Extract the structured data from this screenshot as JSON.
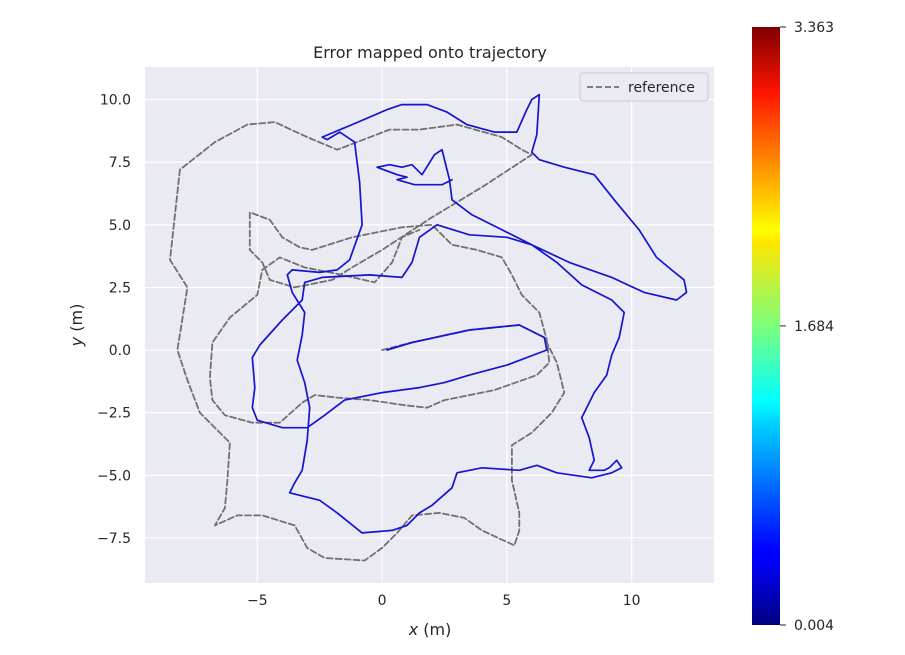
{
  "chart_data": {
    "type": "line",
    "title": "Error mapped onto trajectory",
    "xlabel_var": "x",
    "xlabel_unit": " (m)",
    "ylabel_var": "y",
    "ylabel_unit": " (m)",
    "xlim": [
      -9.5,
      13.3
    ],
    "ylim": [
      -9.3,
      11.3
    ],
    "xticks": [
      -5,
      0,
      5,
      10
    ],
    "xtick_labels": [
      "−5",
      "0",
      "5",
      "10"
    ],
    "yticks": [
      -7.5,
      -5.0,
      -2.5,
      0.0,
      2.5,
      5.0,
      7.5,
      10.0
    ],
    "ytick_labels": [
      "−7.5",
      "−5.0",
      "−2.5",
      "0.0",
      "2.5",
      "5.0",
      "7.5",
      "10.0"
    ],
    "grid": true,
    "legend": {
      "placement": "top-right",
      "entries": [
        "reference"
      ]
    },
    "colorbar": {
      "min": 0.004,
      "max": 3.363,
      "ticks": [
        0.004,
        1.684,
        3.363
      ],
      "tick_labels": [
        "0.004",
        "1.684",
        "3.363"
      ],
      "colormap": "jet"
    },
    "colors": {
      "reference": "#707070",
      "estimate": "#1414d2",
      "background": "#eaeaf2",
      "grid": "#ffffff"
    },
    "series": [
      {
        "name": "reference",
        "style": "dashed",
        "points": [
          [
            0.0,
            0.0
          ],
          [
            1.2,
            0.3
          ],
          [
            3.5,
            0.8
          ],
          [
            5.5,
            1.0
          ],
          [
            6.5,
            0.5
          ],
          [
            7.0,
            -0.5
          ],
          [
            7.3,
            -1.7
          ],
          [
            6.8,
            -2.5
          ],
          [
            6.0,
            -3.3
          ],
          [
            5.2,
            -3.8
          ],
          [
            5.2,
            -5.2
          ],
          [
            5.5,
            -6.5
          ],
          [
            5.5,
            -7.2
          ],
          [
            5.3,
            -7.8
          ],
          [
            4.0,
            -7.2
          ],
          [
            3.3,
            -6.7
          ],
          [
            2.3,
            -6.5
          ],
          [
            1.2,
            -6.6
          ],
          [
            0.6,
            -7.3
          ],
          [
            0.0,
            -7.9
          ],
          [
            -0.7,
            -8.4
          ],
          [
            -2.3,
            -8.3
          ],
          [
            -3.0,
            -7.9
          ],
          [
            -3.5,
            -7.0
          ],
          [
            -4.8,
            -6.6
          ],
          [
            -5.8,
            -6.6
          ],
          [
            -6.7,
            -7.0
          ],
          [
            -6.3,
            -6.3
          ],
          [
            -6.2,
            -5.2
          ],
          [
            -6.1,
            -3.7
          ],
          [
            -7.3,
            -2.5
          ],
          [
            -7.8,
            -1.2
          ],
          [
            -8.2,
            0.0
          ],
          [
            -7.8,
            2.5
          ],
          [
            -8.5,
            3.6
          ],
          [
            -8.1,
            7.2
          ],
          [
            -6.7,
            8.3
          ],
          [
            -5.4,
            9.0
          ],
          [
            -4.3,
            9.1
          ],
          [
            -3.0,
            8.5
          ],
          [
            -1.8,
            8.0
          ],
          [
            0.3,
            8.8
          ],
          [
            1.5,
            8.8
          ],
          [
            3.0,
            9.0
          ],
          [
            4.8,
            8.5
          ],
          [
            5.6,
            8.0
          ],
          [
            6.0,
            7.8
          ],
          [
            4.0,
            6.5
          ],
          [
            2.0,
            5.3
          ],
          [
            0.0,
            4.0
          ],
          [
            -1.2,
            3.3
          ],
          [
            -2.0,
            2.8
          ],
          [
            -3.5,
            2.5
          ],
          [
            -4.5,
            2.8
          ],
          [
            -4.8,
            3.5
          ],
          [
            -5.3,
            4.0
          ],
          [
            -5.3,
            5.5
          ],
          [
            -4.5,
            5.2
          ],
          [
            -4.0,
            4.5
          ],
          [
            -3.3,
            4.1
          ],
          [
            -2.8,
            4.0
          ],
          [
            -1.2,
            4.5
          ],
          [
            0.8,
            4.9
          ],
          [
            2.0,
            5.0
          ],
          [
            2.8,
            4.2
          ],
          [
            3.8,
            4.0
          ],
          [
            4.8,
            3.7
          ],
          [
            5.2,
            3.0
          ],
          [
            5.6,
            2.2
          ],
          [
            6.3,
            1.5
          ],
          [
            6.6,
            0.4
          ],
          [
            6.7,
            -0.5
          ],
          [
            6.2,
            -1.0
          ],
          [
            4.5,
            -1.6
          ],
          [
            3.5,
            -1.8
          ],
          [
            2.5,
            -2.0
          ],
          [
            1.8,
            -2.3
          ],
          [
            0.9,
            -2.2
          ],
          [
            -0.5,
            -2.0
          ],
          [
            -1.8,
            -1.9
          ],
          [
            -2.7,
            -1.8
          ],
          [
            -3.2,
            -2.1
          ],
          [
            -4.1,
            -2.9
          ],
          [
            -5.2,
            -2.9
          ],
          [
            -6.3,
            -2.6
          ],
          [
            -6.8,
            -2.0
          ],
          [
            -6.9,
            -1.1
          ],
          [
            -6.8,
            0.3
          ],
          [
            -6.1,
            1.3
          ],
          [
            -5.0,
            2.2
          ],
          [
            -4.8,
            3.2
          ],
          [
            -4.1,
            3.7
          ],
          [
            -3.1,
            3.3
          ],
          [
            -1.6,
            3.0
          ],
          [
            -0.3,
            2.7
          ],
          [
            0.4,
            3.5
          ],
          [
            0.8,
            4.5
          ],
          [
            1.5,
            4.8
          ]
        ]
      },
      {
        "name": "",
        "style": "solid",
        "points": [
          [
            0.2,
            0.0
          ],
          [
            1.2,
            0.3
          ],
          [
            3.5,
            0.8
          ],
          [
            5.5,
            1.0
          ],
          [
            6.5,
            0.5
          ],
          [
            6.6,
            0.0
          ],
          [
            5.0,
            -0.6
          ],
          [
            3.5,
            -1.0
          ],
          [
            2.5,
            -1.3
          ],
          [
            1.5,
            -1.5
          ],
          [
            0.0,
            -1.7
          ],
          [
            -1.5,
            -2.0
          ],
          [
            -2.3,
            -2.6
          ],
          [
            -3.0,
            -3.1
          ],
          [
            -4.0,
            -3.1
          ],
          [
            -5.0,
            -2.8
          ],
          [
            -5.2,
            -2.3
          ],
          [
            -5.1,
            -1.5
          ],
          [
            -5.2,
            -0.3
          ],
          [
            -4.9,
            0.2
          ],
          [
            -4.0,
            1.2
          ],
          [
            -3.2,
            2.0
          ],
          [
            -3.1,
            2.7
          ],
          [
            -2.4,
            2.9
          ],
          [
            -0.5,
            3.0
          ],
          [
            0.8,
            2.9
          ],
          [
            1.2,
            3.5
          ],
          [
            1.5,
            4.5
          ],
          [
            2.2,
            5.0
          ],
          [
            3.5,
            4.6
          ],
          [
            5.0,
            4.5
          ],
          [
            6.0,
            4.2
          ],
          [
            7.0,
            3.5
          ],
          [
            8.0,
            2.6
          ],
          [
            9.2,
            2.0
          ],
          [
            9.7,
            1.5
          ],
          [
            9.5,
            0.5
          ],
          [
            9.2,
            -0.2
          ],
          [
            9.0,
            -1.0
          ],
          [
            8.5,
            -1.7
          ],
          [
            8.0,
            -2.7
          ],
          [
            8.3,
            -3.5
          ],
          [
            8.5,
            -4.4
          ],
          [
            8.3,
            -4.8
          ],
          [
            8.9,
            -4.8
          ],
          [
            9.1,
            -4.7
          ],
          [
            9.4,
            -4.4
          ],
          [
            9.6,
            -4.7
          ],
          [
            9.2,
            -4.9
          ],
          [
            8.8,
            -5.0
          ],
          [
            8.4,
            -5.1
          ],
          [
            7.0,
            -4.9
          ],
          [
            6.2,
            -4.6
          ],
          [
            5.5,
            -4.8
          ],
          [
            4.0,
            -4.7
          ],
          [
            3.0,
            -4.9
          ],
          [
            2.8,
            -5.5
          ],
          [
            2.0,
            -6.2
          ],
          [
            1.5,
            -6.5
          ],
          [
            1.0,
            -7.0
          ],
          [
            0.4,
            -7.2
          ],
          [
            -0.8,
            -7.3
          ],
          [
            -1.8,
            -6.5
          ],
          [
            -2.5,
            -6.0
          ],
          [
            -3.3,
            -5.8
          ],
          [
            -3.7,
            -5.7
          ],
          [
            -3.5,
            -5.3
          ],
          [
            -3.2,
            -4.8
          ],
          [
            -3.0,
            -3.6
          ],
          [
            -2.9,
            -2.3
          ],
          [
            -3.1,
            -1.3
          ],
          [
            -3.4,
            -0.4
          ],
          [
            -3.2,
            0.6
          ],
          [
            -3.1,
            1.5
          ],
          [
            -3.6,
            2.3
          ],
          [
            -3.8,
            3.0
          ],
          [
            -3.6,
            3.2
          ],
          [
            -2.5,
            3.1
          ],
          [
            -1.8,
            3.2
          ],
          [
            -1.3,
            3.6
          ],
          [
            -0.8,
            5.0
          ],
          [
            -0.9,
            6.7
          ],
          [
            -1.1,
            8.3
          ],
          [
            -1.7,
            8.7
          ],
          [
            -2.2,
            8.4
          ],
          [
            -2.4,
            8.5
          ],
          [
            -1.2,
            9.0
          ],
          [
            0.2,
            9.6
          ],
          [
            0.8,
            9.8
          ],
          [
            1.8,
            9.8
          ],
          [
            2.6,
            9.5
          ],
          [
            3.4,
            9.0
          ],
          [
            4.5,
            8.7
          ],
          [
            5.4,
            8.7
          ],
          [
            5.8,
            9.6
          ],
          [
            6.0,
            10.0
          ],
          [
            6.3,
            10.2
          ],
          [
            6.2,
            8.6
          ],
          [
            6.0,
            7.9
          ],
          [
            6.3,
            7.6
          ],
          [
            7.3,
            7.3
          ],
          [
            8.5,
            7.0
          ],
          [
            9.3,
            6.0
          ],
          [
            10.3,
            4.8
          ],
          [
            11.0,
            3.7
          ],
          [
            11.6,
            3.2
          ],
          [
            12.1,
            2.8
          ],
          [
            12.2,
            2.3
          ],
          [
            11.8,
            2.0
          ],
          [
            10.5,
            2.3
          ],
          [
            9.2,
            2.9
          ],
          [
            7.5,
            3.5
          ],
          [
            6.0,
            4.2
          ],
          [
            4.8,
            4.8
          ],
          [
            3.6,
            5.4
          ],
          [
            2.8,
            6.0
          ],
          [
            2.7,
            6.8
          ],
          [
            2.5,
            7.6
          ],
          [
            2.4,
            8.0
          ],
          [
            2.1,
            7.8
          ],
          [
            1.6,
            7.0
          ],
          [
            1.2,
            7.4
          ],
          [
            0.8,
            7.3
          ],
          [
            0.3,
            7.4
          ],
          [
            -0.2,
            7.3
          ],
          [
            0.6,
            7.0
          ],
          [
            1.0,
            6.9
          ],
          [
            0.6,
            6.8
          ],
          [
            1.3,
            6.6
          ],
          [
            2.4,
            6.6
          ],
          [
            2.8,
            6.8
          ]
        ]
      }
    ]
  }
}
